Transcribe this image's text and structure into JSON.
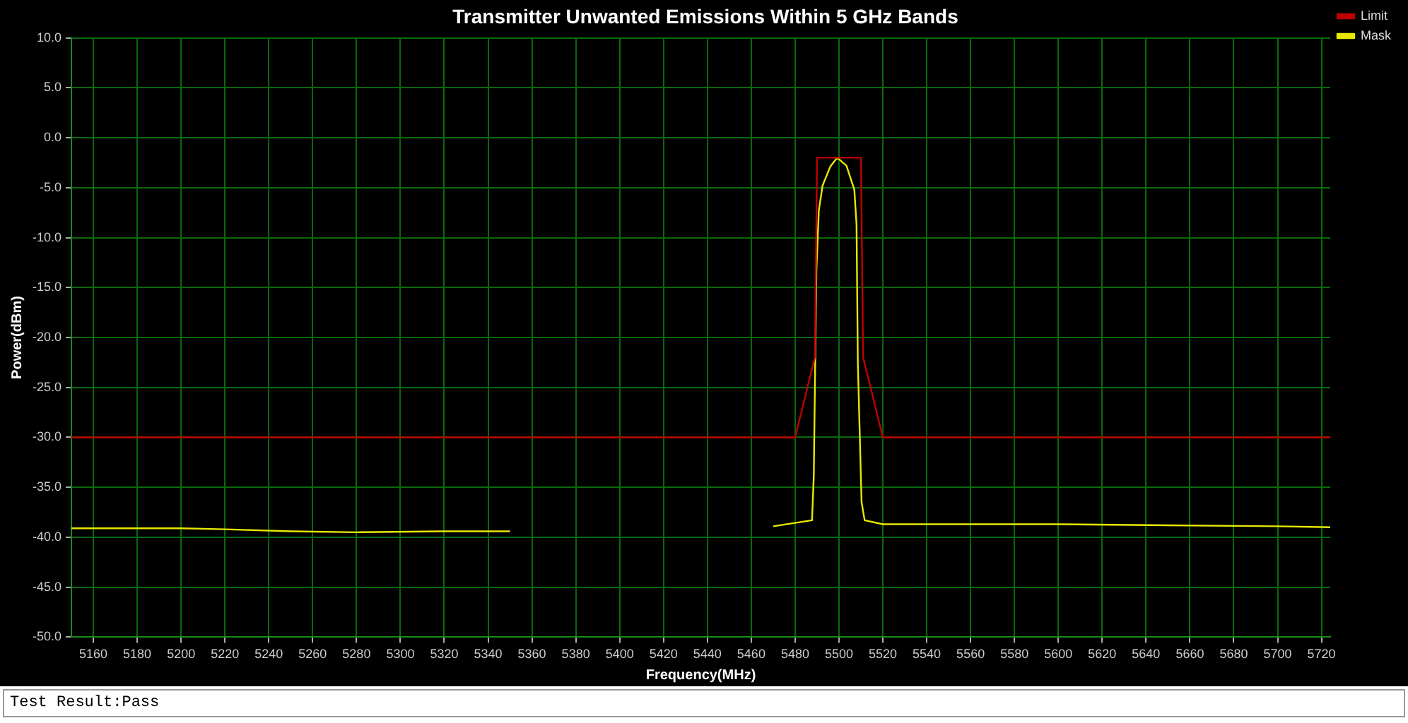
{
  "chart_data": {
    "type": "line",
    "title": "Transmitter Unwanted Emissions Within 5 GHz Bands",
    "xlabel": "Frequency(MHz)",
    "ylabel": "Power(dBm)",
    "xlim": [
      5150,
      5724
    ],
    "ylim": [
      -50,
      10
    ],
    "xticks": [
      5160,
      5180,
      5200,
      5220,
      5240,
      5260,
      5280,
      5300,
      5320,
      5340,
      5360,
      5380,
      5400,
      5420,
      5440,
      5460,
      5480,
      5500,
      5520,
      5540,
      5560,
      5580,
      5600,
      5620,
      5640,
      5660,
      5680,
      5700,
      5720
    ],
    "yticks": [
      {
        "value": -50,
        "label": "-50.0"
      },
      {
        "value": -45,
        "label": "-45.0"
      },
      {
        "value": -40,
        "label": "-40.0"
      },
      {
        "value": -35,
        "label": "-35.0"
      },
      {
        "value": -30,
        "label": "-30.0"
      },
      {
        "value": -25,
        "label": "-25.0"
      },
      {
        "value": -20,
        "label": "-20.0"
      },
      {
        "value": -15,
        "label": "-15.0"
      },
      {
        "value": -10,
        "label": "-10.0"
      },
      {
        "value": -5,
        "label": "-5.0"
      },
      {
        "value": 0,
        "label": "0.0"
      },
      {
        "value": 5,
        "label": "5.0"
      },
      {
        "value": 10,
        "label": "10.0"
      }
    ],
    "grid": true,
    "legend": "top right",
    "marker": "none",
    "line_style": "solid",
    "series": [
      {
        "name": "Limit",
        "color": "#c00000",
        "x": [
          5150,
          5480,
          5489,
          5490,
          5510,
          5511,
          5520,
          5724
        ],
        "values": [
          -30,
          -30,
          -22,
          -2,
          -2,
          -22,
          -30,
          -30
        ]
      },
      {
        "name": "Mask",
        "color": "#e8e800",
        "x": [
          5150,
          5200,
          5220,
          5250,
          5280,
          5320,
          5350,
          5410,
          5470,
          5487.7,
          5488.5,
          5489.7,
          5490.8,
          5492.5,
          5496,
          5499.2,
          5503.4,
          5507,
          5508,
          5508.6,
          5510.3,
          5511.7,
          5520,
          5600,
          5650,
          5700,
          5724
        ],
        "values": [
          -39.1,
          -39.1,
          -39.2,
          -39.4,
          -39.5,
          -39.4,
          -39.4,
          null,
          -38.9,
          -38.3,
          -33.9,
          -13.3,
          -7.3,
          -4.8,
          -2.9,
          -2,
          -2.8,
          -5.2,
          -8.7,
          -22.6,
          -36.5,
          -38.3,
          -38.7,
          -38.7,
          -38.8,
          -38.9,
          -39
        ]
      }
    ],
    "annotations": [
      "Test Result:Pass"
    ]
  }
}
